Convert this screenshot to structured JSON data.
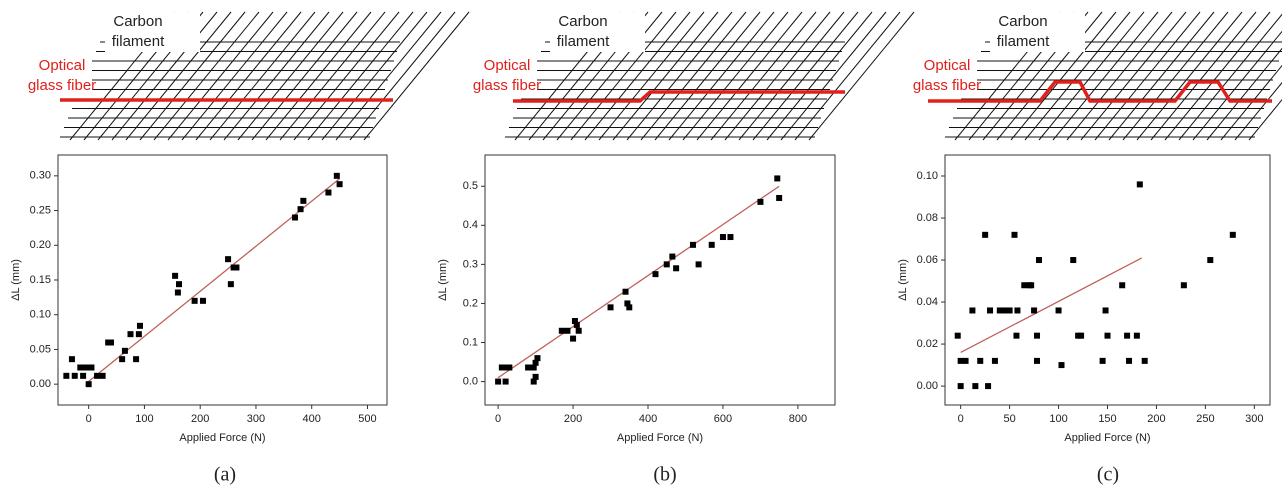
{
  "chart_data": [
    {
      "type": "scatter",
      "filament_label": [
        "Carbon",
        "filament"
      ],
      "fiber_label": [
        "Optical",
        "glass fiber"
      ],
      "xlabel": "Applied Force (N)",
      "ylabel": "ΔL (mm)",
      "caption": "(a)",
      "x": [
        -40,
        -30,
        -25,
        -15,
        -10,
        -5,
        0,
        0,
        5,
        15,
        25,
        35,
        40,
        60,
        65,
        75,
        85,
        90,
        92,
        155,
        160,
        162,
        190,
        205,
        250,
        255,
        260,
        265,
        370,
        380,
        385,
        430,
        445,
        450
      ],
      "values": [
        0.012,
        0.036,
        0.012,
        0.024,
        0.012,
        0.024,
        0.024,
        0.0,
        0.024,
        0.012,
        0.012,
        0.06,
        0.06,
        0.036,
        0.048,
        0.072,
        0.036,
        0.072,
        0.084,
        0.156,
        0.132,
        0.144,
        0.12,
        0.12,
        0.18,
        0.144,
        0.168,
        0.168,
        0.24,
        0.252,
        0.264,
        0.276,
        0.3,
        0.288
      ],
      "color": "#000000",
      "fit": {
        "x": [
          0,
          450
        ],
        "values": [
          0.004,
          0.296
        ],
        "color": "#c0605a"
      },
      "xlim": [
        -55,
        535
      ],
      "ylim": [
        -0.03,
        0.33
      ],
      "xticks": [
        0,
        100,
        200,
        300,
        400,
        500
      ],
      "yticks": [
        {
          "value": 0,
          "label": "0.00"
        },
        {
          "value": 0.05,
          "label": "0.05"
        },
        {
          "value": 0.1,
          "label": "0.10"
        },
        {
          "value": 0.15,
          "label": "0.15"
        },
        {
          "value": 0.2,
          "label": "0.20"
        },
        {
          "value": 0.25,
          "label": "0.25"
        },
        {
          "value": 0.3,
          "label": "0.30"
        }
      ]
    },
    {
      "type": "scatter",
      "filament_label": [
        "Carbon",
        "filament"
      ],
      "fiber_label": [
        "Optical",
        "glass fiber"
      ],
      "xlabel": "Applied Force (N)",
      "ylabel": "ΔL (mm)",
      "caption": "(b)",
      "x": [
        0,
        10,
        20,
        25,
        30,
        80,
        95,
        95,
        100,
        100,
        105,
        170,
        185,
        200,
        205,
        210,
        215,
        300,
        340,
        345,
        350,
        420,
        450,
        465,
        475,
        520,
        535,
        570,
        600,
        620,
        700,
        745,
        750
      ],
      "values": [
        0,
        0.036,
        0,
        0.036,
        0.036,
        0.036,
        0.036,
        0,
        0.012,
        0.048,
        0.06,
        0.13,
        0.13,
        0.11,
        0.155,
        0.145,
        0.13,
        0.19,
        0.23,
        0.2,
        0.19,
        0.275,
        0.3,
        0.32,
        0.29,
        0.35,
        0.3,
        0.35,
        0.37,
        0.37,
        0.46,
        0.52,
        0.47
      ],
      "color": "#000000",
      "fit": {
        "x": [
          0,
          750
        ],
        "values": [
          0.01,
          0.5
        ],
        "color": "#c0605a"
      },
      "xlim": [
        -35,
        899
      ],
      "ylim": [
        -0.06,
        0.58
      ],
      "xticks": [
        0,
        200,
        400,
        600,
        800
      ],
      "yticks": [
        {
          "value": 0,
          "label": "0.0"
        },
        0.1,
        0.2,
        0.3,
        0.4,
        0.5
      ]
    },
    {
      "type": "scatter",
      "filament_label": [
        "Carbon",
        "filament"
      ],
      "fiber_label": [
        "Optical",
        "glass fiber"
      ],
      "xlabel": "Applied Force (N)",
      "ylabel": "ΔL (mm)",
      "caption": "(c)",
      "x": [
        -3,
        0,
        0,
        5,
        12,
        15,
        20,
        25,
        28,
        30,
        35,
        40,
        45,
        50,
        55,
        57,
        58,
        65,
        70,
        72,
        75,
        78,
        78,
        80,
        100,
        103,
        115,
        120,
        123,
        145,
        148,
        150,
        165,
        170,
        172,
        180,
        183,
        188,
        228,
        255,
        278
      ],
      "values": [
        0.024,
        0.012,
        0,
        0.012,
        0.036,
        0,
        0.012,
        0.072,
        0,
        0.036,
        0.012,
        0.036,
        0.036,
        0.036,
        0.072,
        0.024,
        0.036,
        0.048,
        0.048,
        0.048,
        0.036,
        0.012,
        0.024,
        0.06,
        0.036,
        0.01,
        0.06,
        0.024,
        0.024,
        0.012,
        0.036,
        0.024,
        0.048,
        0.024,
        0.012,
        0.024,
        0.096,
        0.012,
        0.048,
        0.06,
        0.072
      ],
      "color": "#000000",
      "fit": {
        "x": [
          0,
          185
        ],
        "values": [
          0.016,
          0.061
        ],
        "color": "#c0605a"
      },
      "xlim": [
        -16,
        316
      ],
      "ylim": [
        -0.009,
        0.11
      ],
      "xticks": [
        0,
        50,
        100,
        150,
        200,
        250,
        300
      ],
      "yticks": [
        {
          "value": 0,
          "label": "0.00"
        },
        {
          "value": 0.02,
          "label": "0.02"
        },
        {
          "value": 0.04,
          "label": "0.04"
        },
        {
          "value": 0.06,
          "label": "0.06"
        },
        {
          "value": 0.08,
          "label": "0.08"
        },
        {
          "value": 0.1,
          "label": "0.10"
        }
      ]
    }
  ]
}
